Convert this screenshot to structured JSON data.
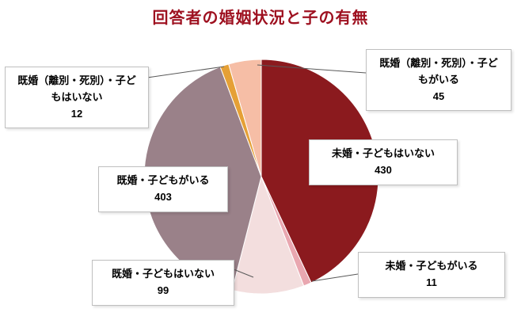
{
  "title": "回答者の婚姻状況と子の有無",
  "title_color": "#9E1120",
  "chart_data": {
    "type": "pie",
    "title": "回答者の婚姻状況と子の有無",
    "total": 1000,
    "start_angle_deg": -90,
    "direction": "clockwise",
    "legend_position": "none",
    "labels_style": "callout-boxes-with-leader-lines",
    "slices": [
      {
        "label": "未婚・子どもはいない",
        "value": 430,
        "color": "#8B1A1E"
      },
      {
        "label": "未婚・子どもがいる",
        "value": 11,
        "color": "#E9A7B0"
      },
      {
        "label": "既婚・子どもはいない",
        "value": 99,
        "color": "#F3DEDE"
      },
      {
        "label": "既婚・子どもがいる",
        "value": 403,
        "color": "#9A8189"
      },
      {
        "label": "既婚（離別・死別）・子どもはいない",
        "value": 12,
        "color": "#E5A036"
      },
      {
        "label": "既婚（離別・死別）・子どもがいる",
        "value": 45,
        "color": "#F6BEA6"
      }
    ]
  }
}
